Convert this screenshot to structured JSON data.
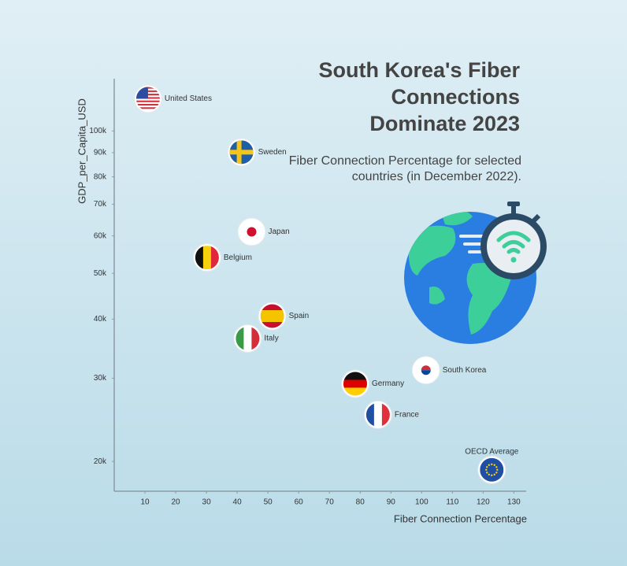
{
  "chart_data": {
    "type": "scatter",
    "title": "South Korea's Fiber Connections Dominate 2023",
    "subtitle": "Fiber Connection Percentage for selected countries (in December 2022).",
    "x_label": "Fiber Connection Percentage",
    "y_label": "GDP_per_Capita_USD",
    "log_y": true,
    "point_color": "#ffffff",
    "categories": [
      "United States",
      "Sweden",
      "Japan",
      "Belgium",
      "Spain",
      "Italy",
      "South Korea",
      "Germany",
      "France",
      "OECD Average"
    ],
    "x": [
      11,
      41.4,
      44.7,
      30.2,
      51.4,
      43.4,
      101.4,
      78.4,
      85.8,
      122.8
    ],
    "values": [
      117000,
      90200,
      61200,
      54000,
      40600,
      36400,
      31200,
      29200,
      25100,
      19200
    ],
    "xlim": [
      0,
      134
    ],
    "xticks": [
      10,
      20,
      30,
      40,
      50,
      60,
      70,
      80,
      90,
      100,
      110,
      120,
      130
    ],
    "ylim": [
      17300,
      129000
    ],
    "yticks": [
      {
        "value": 20000,
        "label": "20k"
      },
      {
        "value": 30000,
        "label": "30k"
      },
      {
        "value": 40000,
        "label": "40k"
      },
      {
        "value": 50000,
        "label": "50k"
      },
      {
        "value": 60000,
        "label": "60k"
      },
      {
        "value": 70000,
        "label": "70k"
      },
      {
        "value": 80000,
        "label": "80k"
      },
      {
        "value": 90000,
        "label": "90k"
      },
      {
        "value": 100000,
        "label": "100k"
      }
    ]
  }
}
